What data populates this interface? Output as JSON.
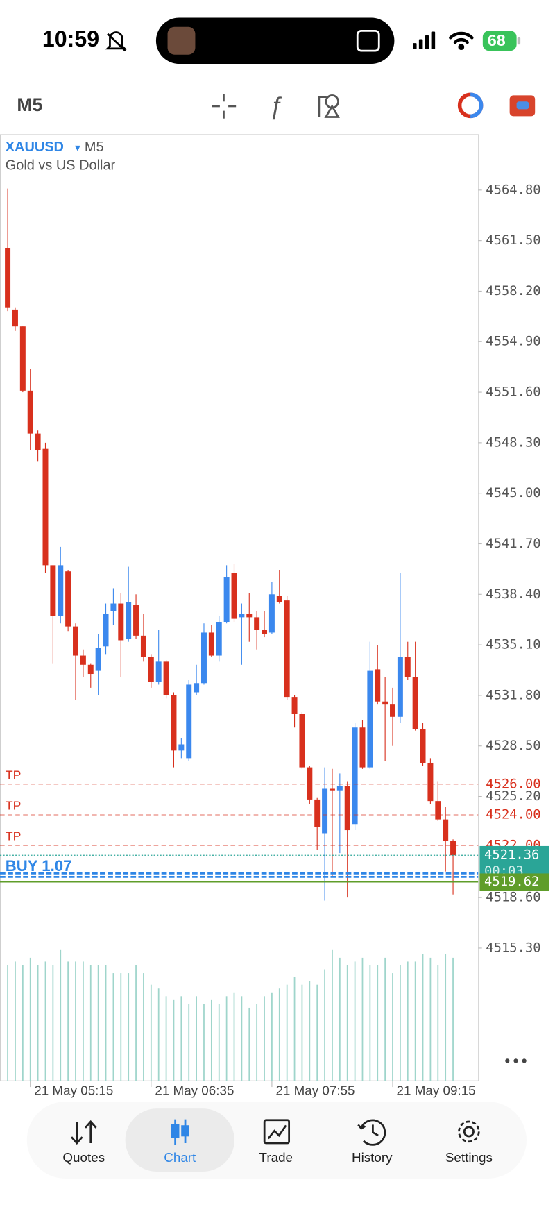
{
  "status_bar": {
    "time": "10:59",
    "battery": "68"
  },
  "toolbar": {
    "timeframe": "M5"
  },
  "chart_data": {
    "type": "candlestick",
    "symbol": "XAUUSD",
    "timeframe": "M5",
    "description": "Gold vs US Dollar",
    "categories": [
      null,
      null,
      null,
      "21 May 05:15",
      null,
      null,
      null,
      null,
      null,
      null,
      null,
      null,
      null,
      null,
      null,
      null,
      null,
      null,
      null,
      "21 May 06:35",
      null,
      null,
      null,
      null,
      null,
      null,
      null,
      null,
      null,
      null,
      null,
      null,
      null,
      null,
      null,
      "21 May 07:55",
      null,
      null,
      null,
      null,
      null,
      null,
      null,
      null,
      null,
      null,
      null,
      null,
      null,
      null,
      null,
      "21 May 09:15",
      null,
      null,
      null,
      null,
      null,
      null,
      null,
      null
    ],
    "open": [
      4561.0,
      4557.0,
      4555.9,
      4551.7,
      4548.9,
      4547.9,
      4540.3,
      4537.0,
      4539.9,
      4536.3,
      4534.4,
      4533.8,
      4533.4,
      4535.0,
      4537.3,
      4537.8,
      4535.5,
      4537.7,
      4535.7,
      4534.3,
      4532.7,
      4534.0,
      4531.8,
      4528.2,
      4527.7,
      4532.0,
      4532.6,
      4535.9,
      4534.4,
      4536.6,
      4539.8,
      4536.9,
      4537.1,
      4536.9,
      4536.1,
      4535.9,
      4538.3,
      4538.0,
      4531.7,
      4530.6,
      4527.1,
      4525.0,
      4522.8,
      4525.7,
      4525.6,
      4525.9,
      4523.4,
      4529.7,
      4527.1,
      4533.5,
      4531.4,
      4531.2,
      4530.4,
      4534.3,
      4533.0,
      4529.6,
      4527.4,
      4524.9,
      4523.7,
      4522.3
    ],
    "high": [
      4564.9,
      4557.1,
      4555.9,
      4553.1,
      4549.1,
      4548.3,
      4540.3,
      4541.5,
      4540.0,
      4536.5,
      4534.8,
      4533.9,
      4535.8,
      4537.8,
      4538.8,
      4538.5,
      4540.2,
      4538.4,
      4537.1,
      4534.5,
      4536.1,
      4534.1,
      4532.0,
      4529.0,
      4532.8,
      4533.8,
      4536.5,
      4536.4,
      4537.0,
      4540.3,
      4540.4,
      4537.8,
      4538.5,
      4537.3,
      4537.3,
      4539.2,
      4540.0,
      4538.3,
      4531.8,
      4530.7,
      4527.2,
      4525.1,
      4527.1,
      4527.0,
      4526.7,
      4526.2,
      4530.0,
      4530.2,
      4535.3,
      4535.1,
      4533.0,
      4532.3,
      4539.8,
      4535.3,
      4535.3,
      4530.0,
      4527.7,
      4526.2,
      4524.5,
      4522.4
    ],
    "low": [
      4556.9,
      4555.6,
      4551.6,
      4547.8,
      4547.1,
      4539.8,
      4533.9,
      4536.5,
      4536.0,
      4531.5,
      4533.0,
      4532.3,
      4531.8,
      4534.5,
      4536.4,
      4533.0,
      4535.3,
      4535.5,
      4534.0,
      4532.3,
      4532.5,
      4531.6,
      4527.1,
      4527.7,
      4527.5,
      4531.8,
      4532.5,
      4534.3,
      4534.0,
      4536.5,
      4536.6,
      4533.8,
      4535.3,
      4534.8,
      4535.6,
      4535.8,
      4537.8,
      4531.5,
      4529.7,
      4527.0,
      4524.7,
      4521.7,
      4518.4,
      4519.9,
      4521.5,
      4518.6,
      4523.0,
      4527.0,
      4527.0,
      4531.2,
      4527.5,
      4528.5,
      4530.0,
      4532.8,
      4529.5,
      4527.2,
      4524.7,
      4523.6,
      4520.3,
      4518.8
    ],
    "close": [
      4557.1,
      4555.9,
      4551.7,
      4548.9,
      4547.8,
      4540.3,
      4537.0,
      4540.3,
      4536.3,
      4534.4,
      4533.8,
      4533.2,
      4534.9,
      4537.1,
      4537.8,
      4535.4,
      4537.9,
      4535.7,
      4534.3,
      4532.7,
      4534.0,
      4531.8,
      4528.2,
      4528.6,
      4532.5,
      4532.6,
      4535.9,
      4534.4,
      4536.6,
      4539.5,
      4536.8,
      4537.1,
      4536.9,
      4536.1,
      4535.8,
      4538.4,
      4537.9,
      4531.7,
      4530.6,
      4527.1,
      4525.0,
      4523.2,
      4525.7,
      4525.6,
      4525.9,
      4523.0,
      4529.7,
      4527.1,
      4533.4,
      4531.4,
      4531.2,
      4530.4,
      4534.3,
      4533.0,
      4529.6,
      4527.4,
      4524.9,
      4523.7,
      4522.3,
      4521.36
    ],
    "volume": [
      150,
      155,
      150,
      160,
      150,
      155,
      150,
      170,
      155,
      155,
      155,
      150,
      150,
      150,
      140,
      140,
      140,
      150,
      140,
      125,
      120,
      110,
      105,
      110,
      100,
      110,
      100,
      105,
      100,
      110,
      115,
      110,
      95,
      100,
      110,
      115,
      120,
      125,
      135,
      125,
      130,
      125,
      145,
      170,
      160,
      150,
      155,
      160,
      150,
      150,
      160,
      140,
      150,
      155,
      155,
      165,
      160,
      150,
      165,
      160
    ],
    "up_color": "#3b88ee",
    "down_color": "#d8301d",
    "volume_color": "#9fd5cb",
    "ylim": [
      4506.63,
      4568.42
    ],
    "yticks": [
      {
        "value": 4564.8,
        "label": "4564.80"
      },
      {
        "value": 4561.5,
        "label": "4561.50"
      },
      {
        "value": 4558.2,
        "label": "4558.20"
      },
      {
        "value": 4554.9,
        "label": "4554.90"
      },
      {
        "value": 4551.6,
        "label": "4551.60"
      },
      {
        "value": 4548.3,
        "label": "4548.30"
      },
      {
        "value": 4545.0,
        "label": "4545.00"
      },
      {
        "value": 4541.7,
        "label": "4541.70"
      },
      {
        "value": 4538.4,
        "label": "4538.40"
      },
      {
        "value": 4535.1,
        "label": "4535.10"
      },
      {
        "value": 4531.8,
        "label": "4531.80"
      },
      {
        "value": 4528.5,
        "label": "4528.50"
      },
      {
        "value": 4525.2,
        "label": "4525.20"
      },
      {
        "value": 4518.6,
        "label": "4518.60"
      },
      {
        "value": 4515.3,
        "label": "4515.30"
      }
    ],
    "grid": false,
    "levels": [
      {
        "name": "TP",
        "value": 4526,
        "label": "4526.00",
        "color": "#d8301d"
      },
      {
        "name": "TP",
        "value": 4524,
        "label": "4524.00",
        "color": "#d8301d"
      },
      {
        "name": "TP",
        "value": 4522,
        "label": "4522.00",
        "color": "#d8301d"
      }
    ],
    "position": {
      "label": "BUY 1.07",
      "value": 4520.1,
      "color": "#2f86e6"
    },
    "price_line": {
      "value": 4519.62,
      "label": "4519.62",
      "color": "#5f9d2a"
    },
    "bid": {
      "value": 4521.36,
      "label": "4521.36",
      "countdown": "00:03",
      "color": "#2aa597"
    }
  },
  "nav": {
    "items": [
      "Quotes",
      "Chart",
      "Trade",
      "History",
      "Settings"
    ]
  }
}
